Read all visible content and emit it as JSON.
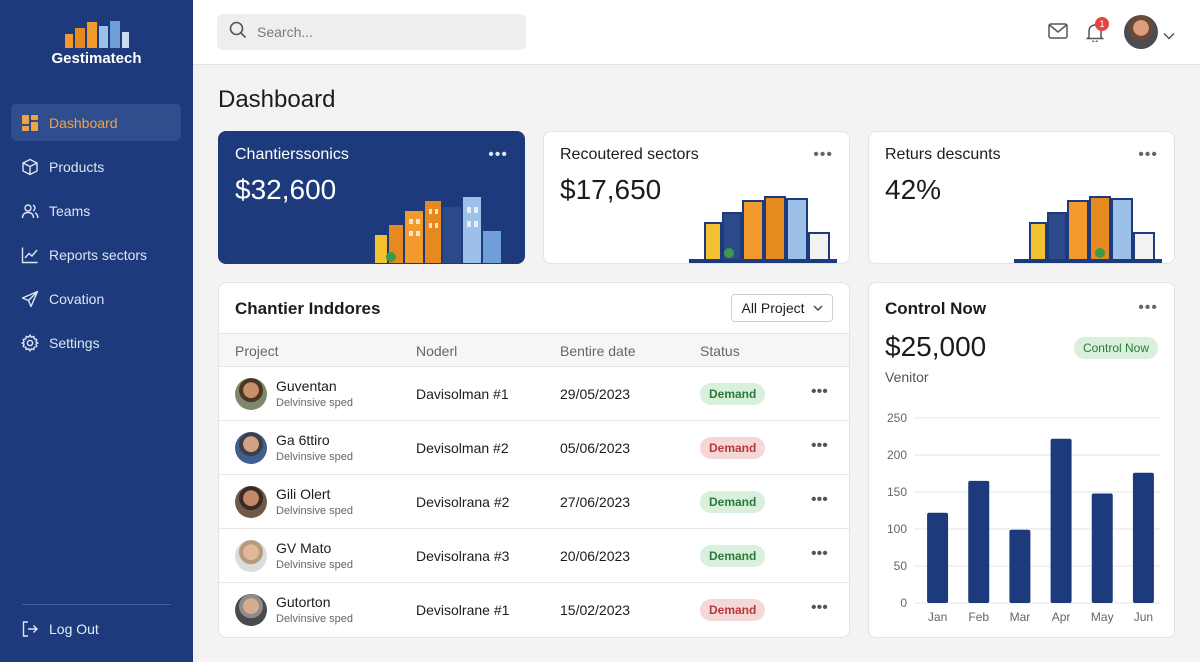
{
  "app": {
    "name": "Gestimatech"
  },
  "search": {
    "placeholder": "Search..."
  },
  "notifications": {
    "count": "1"
  },
  "sidebar": {
    "items": [
      {
        "label": "Dashboard",
        "icon": "dashboard-icon",
        "active": true
      },
      {
        "label": "Products",
        "icon": "box-icon"
      },
      {
        "label": "Teams",
        "icon": "users-icon"
      },
      {
        "label": "Reports sectors",
        "icon": "chart-line-icon"
      },
      {
        "label": "Covation",
        "icon": "send-icon"
      },
      {
        "label": "Settings",
        "icon": "gear-icon"
      }
    ],
    "logout": "Log Out"
  },
  "page": {
    "title": "Dashboard"
  },
  "kpis": [
    {
      "title": "Chantierssonics",
      "value": "$32,600"
    },
    {
      "title": "Recoutered sectors",
      "value": "$17,650"
    },
    {
      "title": "Returs descunts",
      "value": "42%"
    }
  ],
  "projects": {
    "title": "Chantier Inddores",
    "filter": "All Project",
    "columns": [
      "Project",
      "Noderl",
      "Bentire date",
      "Status"
    ],
    "rows": [
      {
        "name": "Guventan",
        "sub": "Delvinsive sped",
        "model": "Davisolman #1",
        "date": "29/05/2023",
        "status": "Demand",
        "tone": "green"
      },
      {
        "name": "Ga 6ttiro",
        "sub": "Delvinsive sped",
        "model": "Devisolman #2",
        "date": "05/06/2023",
        "status": "Demand",
        "tone": "red"
      },
      {
        "name": "Gili Olert",
        "sub": "Delvinsive sped",
        "model": "Devisolrana #2",
        "date": "27/06/2023",
        "status": "Demand",
        "tone": "green"
      },
      {
        "name": "GV Mato",
        "sub": "Delvinsive sped",
        "model": "Devisolrana #3",
        "date": "20/06/2023",
        "status": "Demand",
        "tone": "green"
      },
      {
        "name": "Gutorton",
        "sub": "Delvinsive sped",
        "model": "Devisolrane #1",
        "date": "15/02/2023",
        "status": "Demand",
        "tone": "red"
      }
    ]
  },
  "control": {
    "title": "Control Now",
    "value": "$25,000",
    "subtitle": "Venitor",
    "pill": "Control Now"
  },
  "chart_data": {
    "type": "bar",
    "categories": [
      "Jan",
      "Feb",
      "Mar",
      "Apr",
      "May",
      "Jun"
    ],
    "values": [
      122,
      165,
      99,
      222,
      148,
      176
    ],
    "ylim": [
      0,
      250
    ],
    "yticks": [
      0,
      50,
      100,
      150,
      200,
      250
    ],
    "grid": true,
    "color": "#1d3a7c"
  }
}
